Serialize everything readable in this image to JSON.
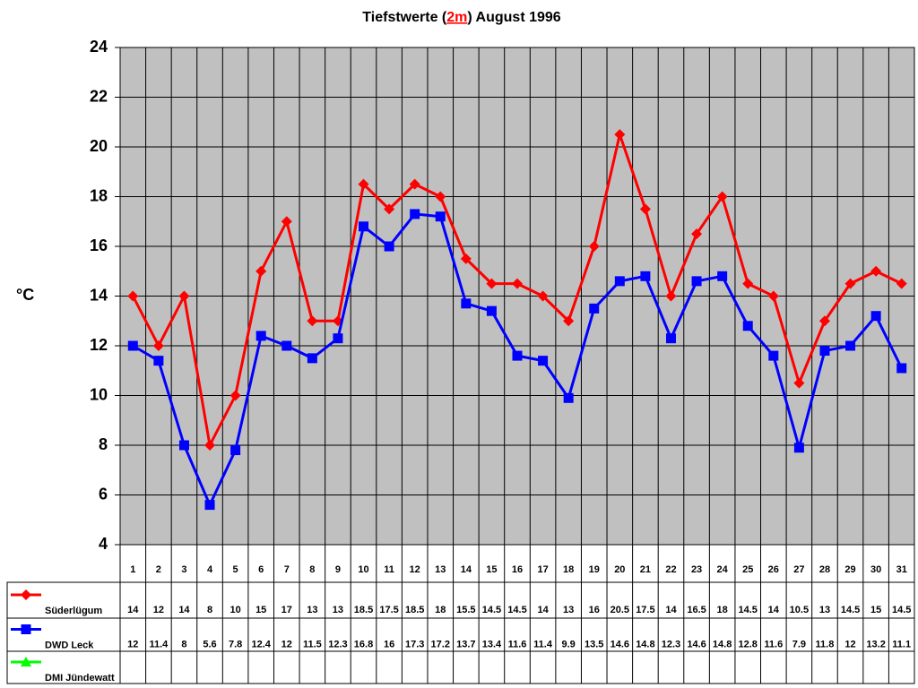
{
  "chart_data": {
    "type": "line",
    "title": [
      "Tiefstwerte (",
      "2m",
      ") August 1996"
    ],
    "y_label": "°C",
    "categories": [
      1,
      2,
      3,
      4,
      5,
      6,
      7,
      8,
      9,
      10,
      11,
      12,
      13,
      14,
      15,
      16,
      17,
      18,
      19,
      20,
      21,
      22,
      23,
      24,
      25,
      26,
      27,
      28,
      29,
      30,
      31
    ],
    "ylim": [
      4,
      24
    ],
    "yticks": [
      4,
      6,
      8,
      10,
      12,
      14,
      16,
      18,
      20,
      22,
      24
    ],
    "grid": true,
    "series": [
      {
        "name": "Süderlügum",
        "color": "#ff0000",
        "marker": "diamond",
        "values": [
          14,
          12,
          14,
          8,
          10,
          15,
          17,
          13,
          13,
          18.5,
          17.5,
          18.5,
          18,
          15.5,
          14.5,
          14.5,
          14,
          13,
          16,
          20.5,
          17.5,
          14,
          16.5,
          18,
          14.5,
          14,
          10.5,
          13,
          14.5,
          15,
          14.5
        ]
      },
      {
        "name": "DWD Leck",
        "color": "#0000ff",
        "marker": "square",
        "values": [
          12,
          11.4,
          8,
          5.6,
          7.8,
          12.4,
          12,
          11.5,
          12.3,
          16.8,
          16,
          17.3,
          17.2,
          13.7,
          13.4,
          11.6,
          11.4,
          9.9,
          13.5,
          14.6,
          14.8,
          12.3,
          14.6,
          14.8,
          12.8,
          11.6,
          7.9,
          11.8,
          12,
          13.2,
          11.1
        ]
      },
      {
        "name": "DMI Jündewatt",
        "color": "#00ff00",
        "marker": "triangle",
        "values": [
          null,
          null,
          null,
          null,
          null,
          null,
          null,
          null,
          null,
          null,
          null,
          null,
          null,
          null,
          null,
          null,
          null,
          null,
          null,
          null,
          null,
          null,
          null,
          null,
          null,
          null,
          null,
          null,
          null,
          null,
          null
        ]
      }
    ]
  }
}
